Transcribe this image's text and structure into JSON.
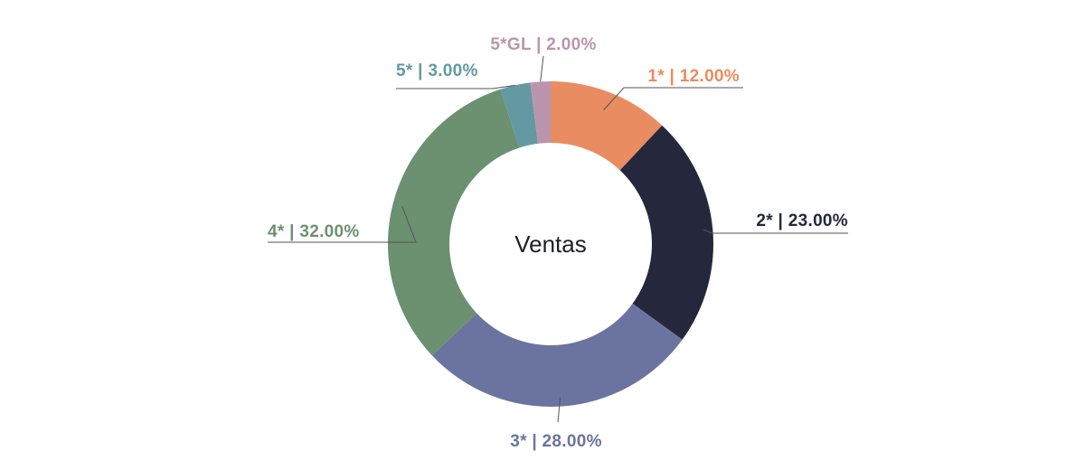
{
  "chart_data": {
    "type": "pie",
    "variant": "donut",
    "center_label": "Ventas",
    "slices": [
      {
        "name": "1*",
        "value": 12,
        "label": "1* | 12.00%",
        "color": "#E98C61"
      },
      {
        "name": "2*",
        "value": 23,
        "label": "2* | 23.00%",
        "color": "#25283D"
      },
      {
        "name": "3*",
        "value": 28,
        "label": "3* | 28.00%",
        "color": "#6B74A0"
      },
      {
        "name": "4*",
        "value": 32,
        "label": "4* | 32.00%",
        "color": "#6B9170"
      },
      {
        "name": "5*",
        "value": 3,
        "label": "5* | 3.00%",
        "color": "#6399A2"
      },
      {
        "name": "5*GL",
        "value": 2,
        "label": "5*GL | 2.00%",
        "color": "#BB95AD"
      }
    ],
    "leader_line_color": "#555555",
    "start_angle": "12 o'clock",
    "direction": "clockwise"
  }
}
